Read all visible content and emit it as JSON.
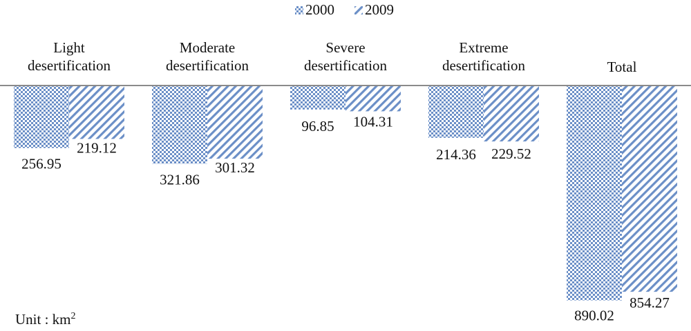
{
  "chart_data": {
    "type": "bar",
    "orientation": "downward",
    "title": "",
    "xlabel": "",
    "ylabel": "",
    "categories": [
      [
        "Light",
        "desertification"
      ],
      [
        "Moderate",
        "desertification"
      ],
      [
        "Severe",
        "desertification"
      ],
      [
        "Extreme",
        "desertification"
      ],
      [
        "Total"
      ]
    ],
    "series": [
      {
        "name": "2000",
        "values": [
          256.95,
          321.86,
          96.85,
          214.36,
          890.02
        ],
        "pattern": "checker"
      },
      {
        "name": "2009",
        "values": [
          219.12,
          301.32,
          104.31,
          229.52,
          854.27
        ],
        "pattern": "diagonal"
      }
    ],
    "value_labels": [
      [
        "256.95",
        "219.12"
      ],
      [
        "321.86",
        "301.32"
      ],
      [
        "96.85",
        "104.31"
      ],
      [
        "214.36",
        "229.52"
      ],
      [
        "890.02",
        "854.27"
      ]
    ],
    "ylim": [
      0,
      1000
    ],
    "grid": false,
    "legend": "top-center",
    "unit_text": "Unit : km",
    "unit_superscript": "2",
    "colors": {
      "series": "#6b8fc7",
      "axis": "#8a8a8a",
      "background": "#ffffff"
    }
  }
}
